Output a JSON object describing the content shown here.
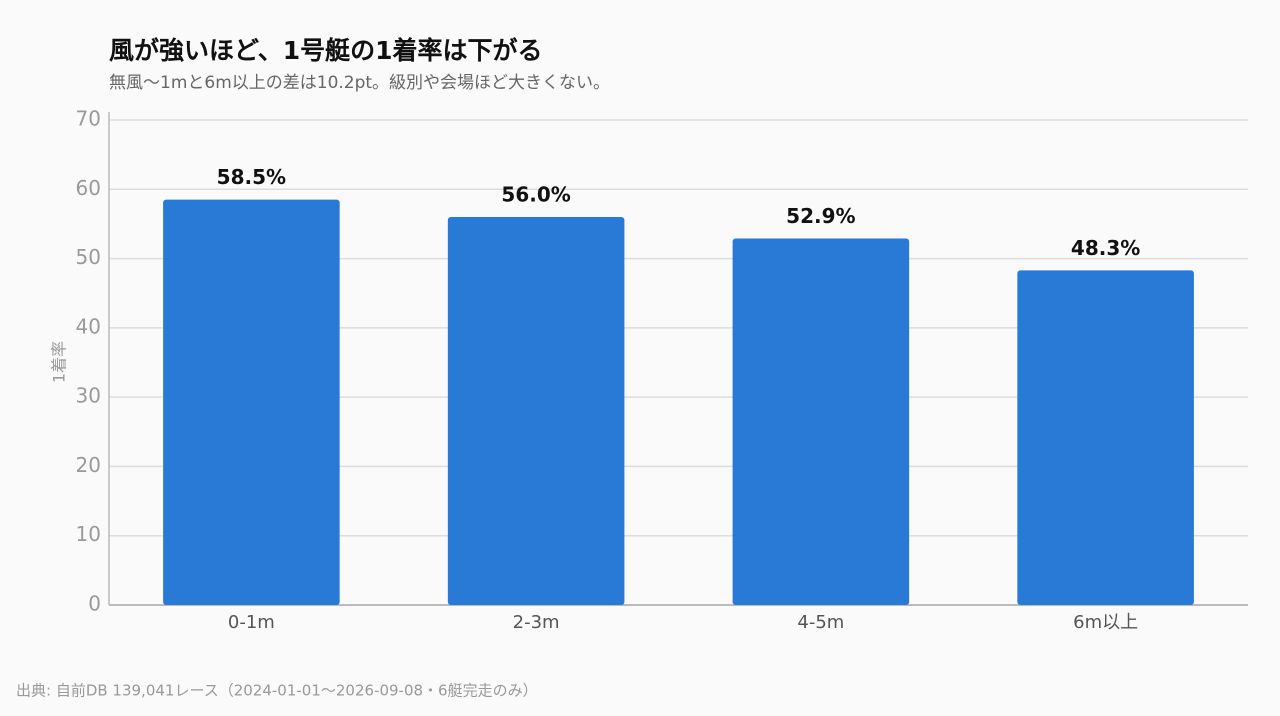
{
  "chart_data": {
    "type": "bar",
    "title": "風が強いほど、1号艇の1着率は下がる",
    "subtitle": "無風〜1mと6m以上の差は10.2pt。級別や会場ほど大きくない。",
    "y_label": "1着率",
    "source": "出典: 自前DB 139,041レース（2024-01-01〜2026-09-08・6艇完走のみ）",
    "categories": [
      "0-1m",
      "2-3m",
      "4-5m",
      "6m以上"
    ],
    "values": [
      58.5,
      56.0,
      52.9,
      48.3
    ],
    "value_labels": [
      "58.5%",
      "56.0%",
      "52.9%",
      "48.3%"
    ],
    "color": "#2979d6",
    "ylim": [
      0,
      70
    ],
    "yticks": [
      0,
      10,
      20,
      30,
      40,
      50,
      60,
      70
    ],
    "grid": true
  }
}
